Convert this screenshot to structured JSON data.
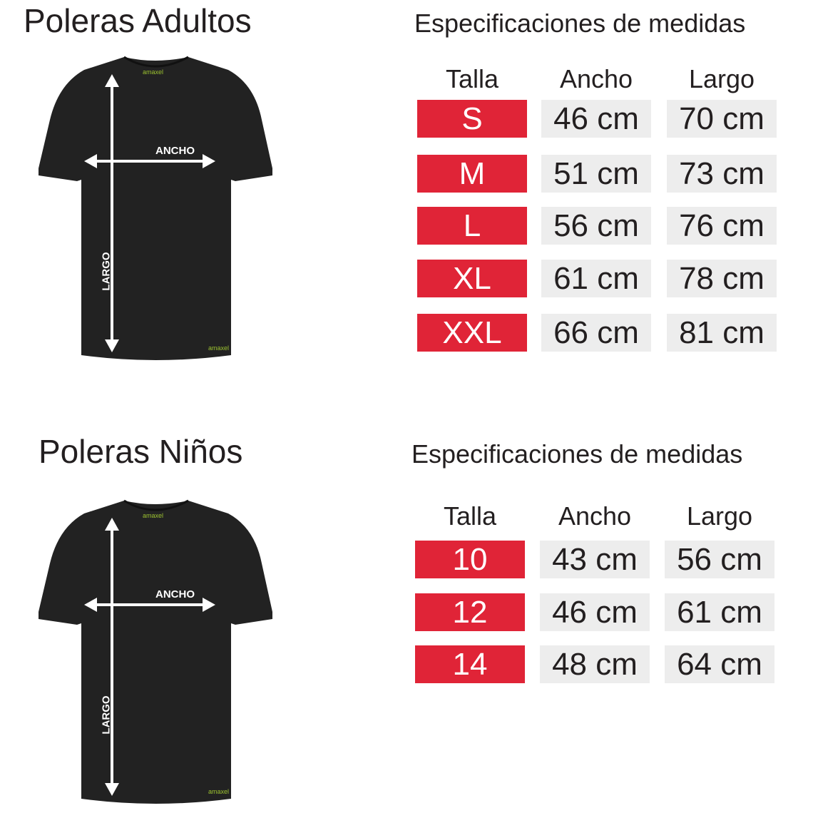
{
  "adults": {
    "title": "Poleras  Adultos",
    "spec_title": "Especificaciones de medidas",
    "headers": [
      "Talla",
      "Ancho",
      "Largo"
    ],
    "rows": [
      {
        "size": "S",
        "ancho": "46 cm",
        "largo": "70 cm"
      },
      {
        "size": "M",
        "ancho": "51 cm",
        "largo": "73 cm"
      },
      {
        "size": "L",
        "ancho": "56 cm",
        "largo": "76 cm"
      },
      {
        "size": "XL",
        "ancho": "61 cm",
        "largo": "78 cm"
      },
      {
        "size": "XXL",
        "ancho": "66 cm",
        "largo": "81 cm"
      }
    ],
    "shirt": {
      "ancho_label": "ANCHO",
      "largo_label": "LARGO",
      "brand": "amaxel"
    }
  },
  "kids": {
    "title": "Poleras  Niños",
    "spec_title": "Especificaciones de medidas",
    "headers": [
      "Talla",
      "Ancho",
      "Largo"
    ],
    "rows": [
      {
        "size": "10",
        "ancho": "43 cm",
        "largo": "56 cm"
      },
      {
        "size": "12",
        "ancho": "46 cm",
        "largo": "61 cm"
      },
      {
        "size": "14",
        "ancho": "48 cm",
        "largo": "64 cm"
      }
    ],
    "shirt": {
      "ancho_label": "ANCHO",
      "largo_label": "LARGO",
      "brand": "amaxel"
    }
  },
  "colors": {
    "size_cell": "#e02437",
    "value_cell": "#ededed",
    "shirt": "#222222",
    "brand": "#9cc230"
  }
}
